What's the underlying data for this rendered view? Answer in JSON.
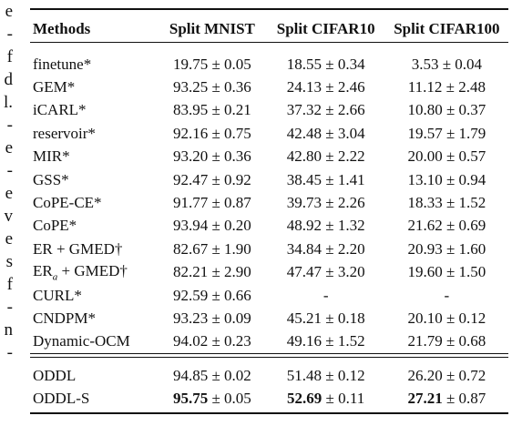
{
  "left_fragments": [
    "e",
    "-",
    "f",
    "d",
    "l.",
    "-",
    "e",
    "-",
    "e",
    "v",
    "e",
    "s",
    "f",
    "-",
    "n",
    "-"
  ],
  "table": {
    "headers": [
      "Methods",
      "Split MNIST",
      "Split CIFAR10",
      "Split CIFAR100"
    ],
    "rows_group1": [
      {
        "method": "finetune*",
        "mnist": "19.75 ± 0.05",
        "cifar10": "18.55 ± 0.34",
        "cifar100": "3.53 ± 0.04"
      },
      {
        "method": "GEM*",
        "mnist": "93.25 ± 0.36",
        "cifar10": "24.13 ± 2.46",
        "cifar100": "11.12 ± 2.48"
      },
      {
        "method": "iCARL*",
        "mnist": "83.95 ± 0.21",
        "cifar10": "37.32 ± 2.66",
        "cifar100": "10.80 ± 0.37"
      },
      {
        "method": "reservoir*",
        "mnist": "92.16 ± 0.75",
        "cifar10": "42.48 ± 3.04",
        "cifar100": "19.57 ± 1.79"
      },
      {
        "method": "MIR*",
        "mnist": "93.20 ± 0.36",
        "cifar10": "42.80 ± 2.22",
        "cifar100": "20.00 ± 0.57"
      },
      {
        "method": "GSS*",
        "mnist": "92.47 ± 0.92",
        "cifar10": "38.45 ± 1.41",
        "cifar100": "13.10 ± 0.94"
      },
      {
        "method": "CoPE-CE*",
        "mnist": "91.77 ± 0.87",
        "cifar10": "39.73 ± 2.26",
        "cifar100": "18.33 ± 1.52"
      },
      {
        "method": "CoPE*",
        "mnist": "93.94 ± 0.20",
        "cifar10": "48.92 ± 1.32",
        "cifar100": "21.62 ± 0.69"
      },
      {
        "method": "ER + GMED†",
        "mnist": "82.67 ± 1.90",
        "cifar10": "34.84 ± 2.20",
        "cifar100": "20.93 ± 1.60"
      },
      {
        "method": "ERa + GMED†",
        "mnist": "82.21 ± 2.90",
        "cifar10": "47.47 ± 3.20",
        "cifar100": "19.60 ± 1.50"
      },
      {
        "method": "CURL*",
        "mnist": "92.59 ± 0.66",
        "cifar10": "-",
        "cifar100": "-"
      },
      {
        "method": "CNDPM*",
        "mnist": "93.23 ± 0.09",
        "cifar10": "45.21 ± 0.18",
        "cifar100": "20.10 ± 0.12"
      },
      {
        "method": "Dynamic-OCM",
        "mnist": "94.02 ± 0.23",
        "cifar10": "49.16 ± 1.52",
        "cifar100": "21.79 ± 0.68"
      }
    ],
    "rows_group2": [
      {
        "method": "ODDL",
        "mnist": "94.85 ± 0.02",
        "cifar10": "51.48 ± 0.12",
        "cifar100": "26.20 ± 0.72"
      },
      {
        "method": "ODDL-S",
        "mnist_bold": "95.75",
        "mnist_rest": " ± 0.05",
        "cifar10_bold": "52.69",
        "cifar10_rest": " ± 0.11",
        "cifar100_bold": "27.21",
        "cifar100_rest": " ± 0.87"
      }
    ]
  }
}
